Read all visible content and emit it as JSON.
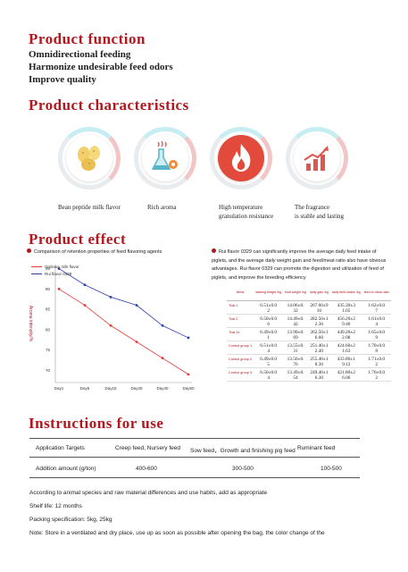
{
  "function": {
    "title": "Product  function",
    "lines": [
      "Omnidirectional feeding",
      "Harmonize undesirable feed odors",
      "Improve quality"
    ]
  },
  "characteristics": {
    "title": "Product  characteristics",
    "items": [
      {
        "icon": "beans-icon",
        "label": "Bean peptide milk flavor"
      },
      {
        "icon": "flask-gear-icon",
        "label": "Rich aroma"
      },
      {
        "icon": "flame-icon",
        "label": "High temperature\ngranulation resistance"
      },
      {
        "icon": "growth-chart-icon",
        "label": "The fragrance\nis stable and lasting"
      }
    ]
  },
  "effect": {
    "title": "Product  effect",
    "left_caption": "Comparison of retention properties of feed flavoring agents",
    "right_caption": "Rui flavor 0329 can significantly improve the average daily feed intake of piglets, and the average daily weight gain and feed/meat ratio also have obvious advantages. Rui flavor 0329 can promote the digestion and utilization of feed of piglets, and improve the breeding efficiency"
  },
  "chart_data": {
    "type": "line",
    "ylabel": "Aroma intensity/%",
    "x": [
      "Day1",
      "Day5",
      "Day15",
      "Day25",
      "Day40",
      "Day60"
    ],
    "ylim": [
      67,
      96
    ],
    "yticks": [
      70,
      75,
      80,
      85,
      90,
      95
    ],
    "series": [
      {
        "name": "Ordinary milk flavor",
        "color": "#e53935",
        "values": [
          90,
          86,
          81,
          77,
          73,
          69
        ]
      },
      {
        "name": "Rui flavor 0329",
        "color": "#2c3fb0",
        "values": [
          95,
          91,
          88,
          86,
          81,
          78
        ]
      }
    ],
    "legend": "top-left",
    "grid": false
  },
  "trial_table": {
    "headers": [
      "Items",
      "starting weight /kg",
      "final weight /kg",
      "daily gain /kg",
      "daily feed intake /kg",
      "feed to meat ratio"
    ],
    "rows": [
      [
        "Trial 1",
        "6.51±0.0\n2",
        "14.06±0.\n32",
        "267.60±9\n10",
        "435.30±3\n1.05",
        "1.62±0.0\n7"
      ],
      [
        "Trial 2",
        "6.50±0.0\n6",
        "14.49±0.\n42",
        "282.50±1\n2.30",
        "456.20±2\n9.40",
        "1.61±0.0\n4"
      ],
      [
        "Trial 14",
        "6.49±0.0\n1",
        "13.90±0.\n69",
        "262.50±1\n6.60",
        "449.20±2\n2.08",
        "1.65±0.0\n9"
      ],
      [
        "Control group 1",
        "6.51±0.0\n4",
        "13.55±0.\n31",
        "251.40±1\n2.40",
        "424.60±2\n1.63",
        "1.70±0.0\n8"
      ],
      [
        "Control group 2",
        "6.49±0.0\n5",
        "13.56±0.\n76",
        "255.40±1\n8.30",
        "433.80±1\n9.12",
        "1.71±0.0\n2"
      ],
      [
        "Control group 3",
        "6.50±0.0\n4",
        "13.49±0.\n54",
        "249.40±1\n6.30",
        "421.80±2\n6.06",
        "1.76±0.0\n2"
      ]
    ]
  },
  "instructions": {
    "title": "Instructions  for  use",
    "targets_label": "Application Targets",
    "targets": [
      "Creep feed, Nursery feed",
      "Sow feed，Growth and finishing pig feed",
      "Ruminant feed"
    ],
    "amount_label": "Addition amount (g/ton)",
    "amounts": [
      "400-600",
      "300-500",
      "100-500"
    ],
    "notes": [
      "According to animal species and raw material differences and use habits, add as appropriate",
      "Shelf life: 12 months",
      "Packing specification: 5kg, 25kg",
      "Note: Store in a ventilated and dry place, use up as soon as possible after opening the bag, the color change of the"
    ]
  }
}
